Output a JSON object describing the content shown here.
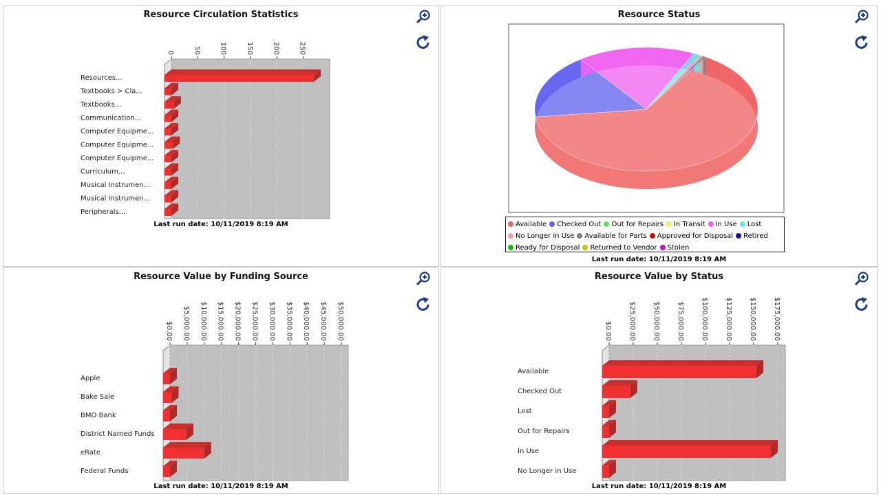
{
  "footer": "Last run date: 10/11/2019 8:19 AM",
  "icons": {
    "zoom": "zoom-in-icon",
    "refresh": "refresh-icon"
  },
  "colors": {
    "bar": "#f03030",
    "plot_bg": "#c0c0c0",
    "icon": "#1a3a8a"
  },
  "panels": {
    "circ": {
      "title": "Resource Circulation Statistics"
    },
    "status": {
      "title": "Resource Status"
    },
    "funding": {
      "title": "Resource Value by Funding Source"
    },
    "valstatus": {
      "title": "Resource Value by Status"
    }
  },
  "chart_data": [
    {
      "id": "circ",
      "type": "bar",
      "orientation": "horizontal",
      "title": "Resource Circulation Statistics",
      "categories": [
        "Resources...",
        "Textbooks > Cla...",
        "Textbooks...",
        "Communication...",
        "Computer Equipme...",
        "Computer Equipme...",
        "Computer Equipme...",
        "Curriculum...",
        "Musical Instrumen...",
        "Musical Instrumen...",
        "Peripherals..."
      ],
      "values": [
        270,
        0,
        5,
        0,
        0,
        3,
        0,
        0,
        0,
        0,
        0
      ],
      "ticks": [
        "0",
        "50",
        "100",
        "150",
        "200",
        "250"
      ],
      "tick_values": [
        0,
        50,
        100,
        150,
        200,
        250
      ],
      "xlim": [
        0,
        300
      ],
      "grid": true
    },
    {
      "id": "status",
      "type": "pie",
      "title": "Resource Status",
      "style": "3d",
      "legend_placement": "bottom",
      "series": [
        {
          "name": "Available",
          "value": 64,
          "color": "#f06060"
        },
        {
          "name": "Checked Out",
          "value": 17,
          "color": "#6060f0"
        },
        {
          "name": "Out for Repairs",
          "value": 0,
          "color": "#60e060"
        },
        {
          "name": "In Transit",
          "value": 0,
          "color": "#f0f060"
        },
        {
          "name": "In Use",
          "value": 17,
          "color": "#f060f0"
        },
        {
          "name": "Lost",
          "value": 1,
          "color": "#60e8f0"
        },
        {
          "name": "No Longer in Use",
          "value": 0.5,
          "color": "#f0a0a0"
        },
        {
          "name": "Available for Parts",
          "value": 0.5,
          "color": "#808080"
        },
        {
          "name": "Approved for Disposal",
          "value": 0,
          "color": "#c01010"
        },
        {
          "name": "Retired",
          "value": 0,
          "color": "#1010a0"
        },
        {
          "name": "Ready for Disposal",
          "value": 0,
          "color": "#10c010"
        },
        {
          "name": "Returned to Vendor",
          "value": 0,
          "color": "#c0c010"
        },
        {
          "name": "Stolen",
          "value": 0,
          "color": "#c010c0"
        }
      ]
    },
    {
      "id": "funding",
      "type": "bar",
      "orientation": "horizontal",
      "title": "Resource Value by Funding Source",
      "categories": [
        "Apple",
        "Bake Sale",
        "BMO Bank",
        "District Named Funds",
        "eRate",
        "Federal Funds"
      ],
      "values": [
        0,
        500,
        0,
        4800,
        10000,
        0
      ],
      "ticks": [
        "$0.00",
        "$5,000.00",
        "$10,000.00",
        "$15,000.00",
        "$20,000.00",
        "$25,000.00",
        "$30,000.00",
        "$35,000.00",
        "$40,000.00",
        "$45,000.00",
        "$50,000.00"
      ],
      "tick_values": [
        0,
        5000,
        10000,
        15000,
        20000,
        25000,
        30000,
        35000,
        40000,
        45000,
        50000
      ],
      "xlim": [
        0,
        52000
      ],
      "grid": true
    },
    {
      "id": "valstatus",
      "type": "bar",
      "orientation": "horizontal",
      "title": "Resource Value by Status",
      "categories": [
        "Available",
        "Checked Out",
        "Lost",
        "Out for Repairs",
        "In Use",
        "No Longer in Use"
      ],
      "values": [
        153000,
        22000,
        0,
        0,
        168000,
        0
      ],
      "ticks": [
        "$0.00",
        "$25,000.00",
        "$50,000.00",
        "$75,000.00",
        "$100,000.00",
        "$125,000.00",
        "$150,000.00",
        "$175,000.00"
      ],
      "tick_values": [
        0,
        25000,
        50000,
        75000,
        100000,
        125000,
        150000,
        175000
      ],
      "xlim": [
        0,
        183000
      ],
      "grid": true
    }
  ]
}
